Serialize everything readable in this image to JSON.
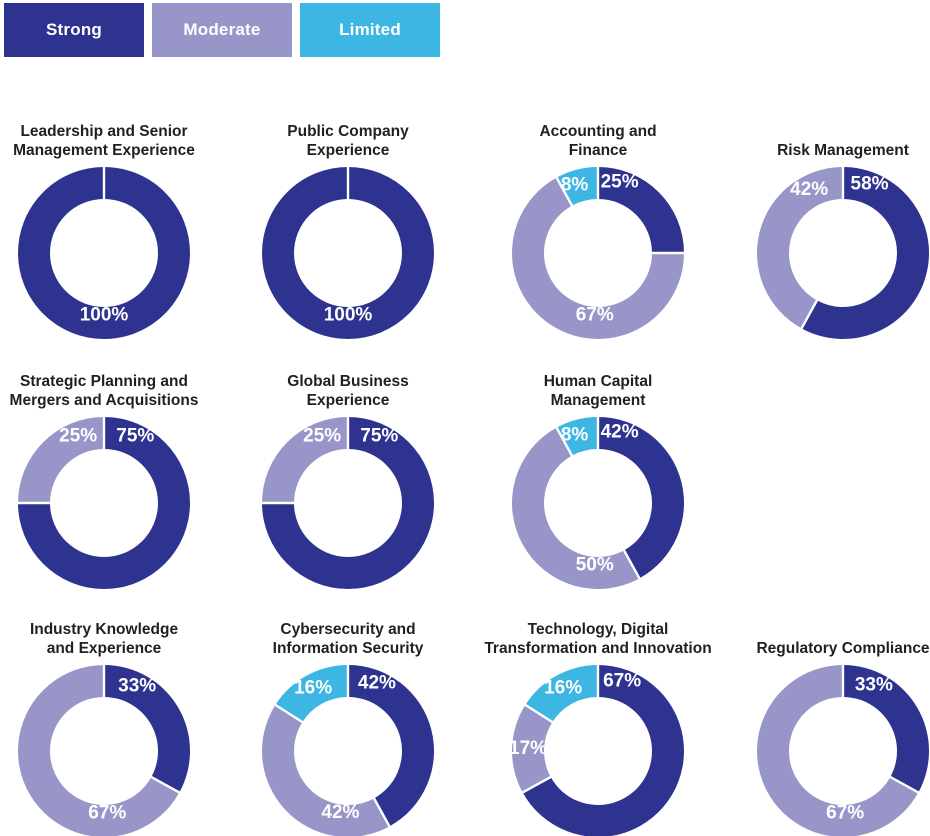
{
  "legend": {
    "items": [
      {
        "key": "strong",
        "label": "Strong"
      },
      {
        "key": "moderate",
        "label": "Moderate"
      },
      {
        "key": "limited",
        "label": "Limited"
      }
    ]
  },
  "colors": {
    "strong": "#2E3390",
    "moderate": "#9896C9",
    "limited": "#3DB6E4",
    "divider": "#FFFFFF",
    "label_text": "#FFFFFF",
    "title_text": "#231F20"
  },
  "chart_data": [
    {
      "type": "donut",
      "row": 0,
      "col": 0,
      "title_lines": [
        "Leadership and Senior",
        "Management Experience"
      ],
      "segments": [
        {
          "name": "Strong",
          "value": 100,
          "label": "100%",
          "label_angle": 180,
          "label_r": 62
        }
      ]
    },
    {
      "type": "donut",
      "row": 0,
      "col": 1,
      "title_lines": [
        "Public Company",
        "Experience"
      ],
      "segments": [
        {
          "name": "Strong",
          "value": 100,
          "label": "100%",
          "label_angle": 180,
          "label_r": 62
        }
      ]
    },
    {
      "type": "donut",
      "row": 0,
      "col": 2,
      "title_lines": [
        "Accounting and",
        "Finance"
      ],
      "segments": [
        {
          "name": "Strong",
          "value": 25,
          "label": "25%",
          "label_angle": 17,
          "label_r": 74
        },
        {
          "name": "Moderate",
          "value": 67,
          "label": "67%",
          "label_angle": 183,
          "label_r": 62
        },
        {
          "name": "Limited",
          "value": 8,
          "label": "8%",
          "label_angle": 341,
          "label_r": 72
        }
      ]
    },
    {
      "type": "donut",
      "row": 0,
      "col": 3,
      "title_lines": [
        "Risk Management"
      ],
      "segments": [
        {
          "name": "Strong",
          "value": 58,
          "label": "58%",
          "label_angle": 21,
          "label_r": 74
        },
        {
          "name": "Moderate",
          "value": 42,
          "label": "42%",
          "label_angle": 332,
          "label_r": 72
        }
      ]
    },
    {
      "type": "donut",
      "row": 1,
      "col": 0,
      "title_lines": [
        "Strategic Planning and",
        "Mergers and Acquisitions"
      ],
      "segments": [
        {
          "name": "Strong",
          "value": 75,
          "label": "75%",
          "label_angle": 25,
          "label_r": 74
        },
        {
          "name": "Moderate",
          "value": 25,
          "label": "25%",
          "label_angle": 339,
          "label_r": 72
        }
      ]
    },
    {
      "type": "donut",
      "row": 1,
      "col": 1,
      "title_lines": [
        "Global Business",
        "Experience"
      ],
      "segments": [
        {
          "name": "Strong",
          "value": 75,
          "label": "75%",
          "label_angle": 25,
          "label_r": 74
        },
        {
          "name": "Moderate",
          "value": 25,
          "label": "25%",
          "label_angle": 339,
          "label_r": 72
        }
      ]
    },
    {
      "type": "donut",
      "row": 1,
      "col": 2,
      "title_lines": [
        "Human Capital",
        "Management"
      ],
      "segments": [
        {
          "name": "Strong",
          "value": 42,
          "label": "42%",
          "label_angle": 17,
          "label_r": 74
        },
        {
          "name": "Moderate",
          "value": 50,
          "label": "50%",
          "label_angle": 183,
          "label_r": 62
        },
        {
          "name": "Limited",
          "value": 8,
          "label": "8%",
          "label_angle": 341,
          "label_r": 72
        }
      ]
    },
    {
      "type": "donut",
      "row": 2,
      "col": 0,
      "title_lines": [
        "Industry Knowledge",
        "and Experience"
      ],
      "segments": [
        {
          "name": "Strong",
          "value": 33,
          "label": "33%",
          "label_angle": 27,
          "label_r": 73
        },
        {
          "name": "Moderate",
          "value": 67,
          "label": "67%",
          "label_angle": 177,
          "label_r": 62
        }
      ]
    },
    {
      "type": "donut",
      "row": 2,
      "col": 1,
      "title_lines": [
        "Cybersecurity and",
        "Information Security"
      ],
      "segments": [
        {
          "name": "Strong",
          "value": 42,
          "label": "42%",
          "label_angle": 23,
          "label_r": 74
        },
        {
          "name": "Moderate",
          "value": 42,
          "label": "42%",
          "label_angle": 187,
          "label_r": 62
        },
        {
          "name": "Limited",
          "value": 16,
          "label": "16%",
          "label_angle": 331,
          "label_r": 72
        }
      ]
    },
    {
      "type": "donut",
      "row": 2,
      "col": 2,
      "title_lines": [
        "Technology, Digital",
        "Transformation and Innovation"
      ],
      "segments": [
        {
          "name": "Strong",
          "value": 67,
          "label": "67%",
          "label_angle": 19,
          "label_r": 74
        },
        {
          "name": "Moderate",
          "value": 17,
          "label": "17%",
          "label_angle": 272,
          "label_r": 70
        },
        {
          "name": "Limited",
          "value": 16,
          "label": "16%",
          "label_angle": 331,
          "label_r": 72
        }
      ]
    },
    {
      "type": "donut",
      "row": 2,
      "col": 3,
      "title_lines": [
        "Regulatory Compliance"
      ],
      "segments": [
        {
          "name": "Strong",
          "value": 33,
          "label": "33%",
          "label_angle": 25,
          "label_r": 73
        },
        {
          "name": "Moderate",
          "value": 67,
          "label": "67%",
          "label_angle": 178,
          "label_r": 62
        }
      ]
    }
  ]
}
